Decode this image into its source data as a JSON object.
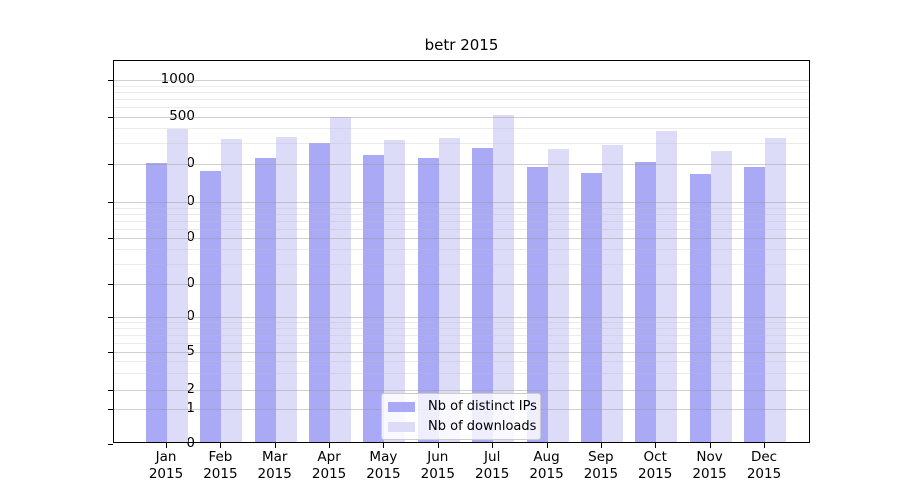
{
  "title": "betr 2015",
  "chart_data": {
    "type": "bar",
    "title": "betr 2015",
    "months": [
      "Jan",
      "Feb",
      "Mar",
      "Apr",
      "May",
      "Jun",
      "Jul",
      "Aug",
      "Sep",
      "Oct",
      "Nov",
      "Dec"
    ],
    "year": "2015",
    "categories": [
      "Jan 2015",
      "Feb 2015",
      "Mar 2015",
      "Apr 2015",
      "May 2015",
      "Jun 2015",
      "Jul 2015",
      "Aug 2015",
      "Sep 2015",
      "Oct 2015",
      "Nov 2015",
      "Dec 2015"
    ],
    "series": [
      {
        "name": "Nb of distinct IPs",
        "color": "#a9a9f5",
        "values": [
          196,
          170,
          216,
          290,
          231,
          216,
          264,
          183,
          164,
          200,
          161,
          183
        ]
      },
      {
        "name": "Nb of downloads",
        "color": "#dcdcf8",
        "values": [
          381,
          313,
          327,
          482,
          307,
          321,
          500,
          257,
          278,
          366,
          248,
          321
        ]
      }
    ],
    "yscale": "symlog",
    "yticks": [
      0,
      1,
      2,
      5,
      10,
      20,
      50,
      100,
      200,
      500,
      1000
    ],
    "ytick_labels": [
      "0",
      "1",
      "2",
      "5",
      "10",
      "20",
      "50",
      "100",
      "200",
      "500",
      "1000"
    ],
    "minor_yticks": [
      3,
      4,
      6,
      7,
      8,
      9,
      30,
      40,
      60,
      70,
      80,
      90,
      300,
      400,
      600,
      700,
      800,
      900
    ],
    "ylim": [
      0,
      1300
    ],
    "grid": true,
    "legend_position": "lower center",
    "xlabel": "",
    "ylabel": ""
  },
  "legend": {
    "items": [
      {
        "label": "Nb of distinct IPs",
        "color": "#a9a9f5"
      },
      {
        "label": "Nb of downloads",
        "color": "#dcdcf8"
      }
    ]
  }
}
